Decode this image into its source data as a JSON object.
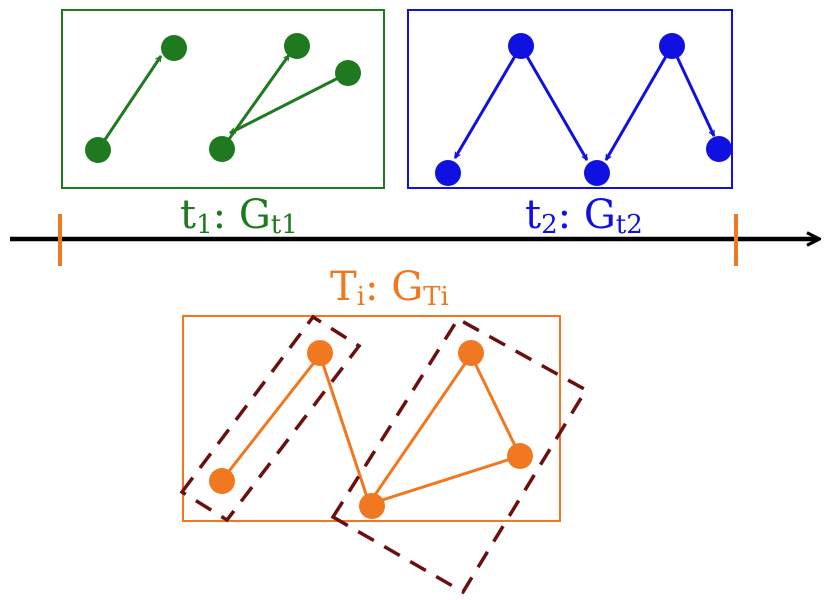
{
  "colors": {
    "green": "#1f7a1f",
    "blue": "#1010e0",
    "orange": "#f07820",
    "dashed": "#6b1010",
    "axis": "#000000"
  },
  "labels": {
    "t1": {
      "base": "t",
      "sub": "1",
      "sep": ": ",
      "g": "G",
      "gsub": "t1"
    },
    "t2": {
      "base": "t",
      "sub": "2",
      "sep": ": ",
      "g": "G",
      "gsub": "t2"
    },
    "ti": {
      "base": "T",
      "sub": "i",
      "sep": ": ",
      "g": "G",
      "gsub": "Ti"
    }
  },
  "graphs": {
    "g_t1": {
      "node_count": 5,
      "edge_count": 3
    },
    "g_t2": {
      "node_count": 5,
      "edge_count": 4
    },
    "g_ti": {
      "node_count": 5,
      "edge_count": 5,
      "dashed_groups": 2
    }
  }
}
